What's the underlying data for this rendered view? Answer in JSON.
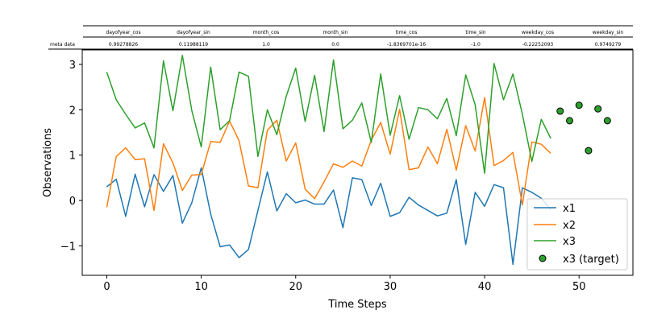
{
  "meta_table": {
    "columns": [
      "dayofyear_cos",
      "dayofyear_sin",
      "month_cos",
      "month_sin",
      "time_cos",
      "time_sin",
      "weekday_cos",
      "weekday_sin"
    ],
    "row_label": "meta data",
    "values": [
      "0.99278826",
      "0.11988119",
      "1.0",
      "0.0",
      "-1.8369701e-16",
      "-1.0",
      "-0.22252093",
      "0.9749279"
    ]
  },
  "chart_data": {
    "type": "line",
    "xlabel": "Time Steps",
    "ylabel": "Observations",
    "xlim": [
      -2.6,
      55.7
    ],
    "ylim": [
      -1.65,
      3.32
    ],
    "xticks": [
      0,
      10,
      20,
      30,
      40,
      50
    ],
    "yticks": [
      -1,
      0,
      1,
      2,
      3
    ],
    "grid": false,
    "legend_position": "lower-right",
    "series": [
      {
        "name": "x1",
        "color": "#1f77b4",
        "x": [
          0,
          1,
          2,
          3,
          4,
          5,
          6,
          7,
          8,
          9,
          10,
          11,
          12,
          13,
          14,
          15,
          16,
          17,
          18,
          19,
          20,
          21,
          22,
          23,
          24,
          25,
          26,
          27,
          28,
          29,
          30,
          31,
          32,
          33,
          34,
          35,
          36,
          37,
          38,
          39,
          40,
          41,
          42,
          43,
          44,
          45,
          46,
          47
        ],
        "values": [
          0.3,
          0.47,
          -0.35,
          0.58,
          -0.14,
          0.57,
          0.2,
          0.55,
          -0.5,
          -0.05,
          0.72,
          -0.3,
          -1.02,
          -0.98,
          -1.26,
          -1.08,
          -0.22,
          0.63,
          -0.23,
          0.15,
          -0.05,
          0.01,
          -0.08,
          -0.08,
          0.23,
          -0.6,
          0.5,
          0.46,
          -0.11,
          0.38,
          -0.35,
          -0.27,
          0.07,
          -0.1,
          -0.22,
          -0.34,
          -0.28,
          0.46,
          -0.97,
          0.18,
          -0.13,
          0.35,
          0.28,
          -1.41,
          0.28,
          0.18,
          0.05,
          -0.2
        ]
      },
      {
        "name": "x2",
        "color": "#ff7f0e",
        "x": [
          0,
          1,
          2,
          3,
          4,
          5,
          6,
          7,
          8,
          9,
          10,
          11,
          12,
          13,
          14,
          15,
          16,
          17,
          18,
          19,
          20,
          21,
          22,
          23,
          24,
          25,
          26,
          27,
          28,
          29,
          30,
          31,
          32,
          33,
          34,
          35,
          36,
          37,
          38,
          39,
          40,
          41,
          42,
          43,
          44,
          45,
          46,
          47
        ],
        "values": [
          -0.15,
          0.97,
          1.16,
          0.9,
          0.92,
          -0.22,
          1.25,
          0.83,
          0.22,
          0.56,
          0.57,
          1.3,
          1.28,
          1.75,
          1.32,
          0.32,
          0.28,
          1.55,
          1.77,
          0.87,
          1.27,
          0.25,
          0.04,
          0.41,
          0.81,
          0.73,
          0.87,
          0.76,
          1.33,
          1.72,
          1.02,
          2.01,
          0.68,
          0.72,
          1.18,
          0.81,
          1.57,
          0.67,
          1.65,
          1.09,
          2.27,
          0.77,
          0.88,
          1.06,
          -0.1,
          1.29,
          1.24,
          1.04
        ]
      },
      {
        "name": "x3",
        "color": "#2ca02c",
        "x": [
          0,
          1,
          2,
          3,
          4,
          5,
          6,
          7,
          8,
          9,
          10,
          11,
          12,
          13,
          14,
          15,
          16,
          17,
          18,
          19,
          20,
          21,
          22,
          23,
          24,
          25,
          26,
          27,
          28,
          29,
          30,
          31,
          32,
          33,
          34,
          35,
          36,
          37,
          38,
          39,
          40,
          41,
          42,
          43,
          44,
          45,
          46,
          47
        ],
        "values": [
          2.83,
          2.22,
          1.9,
          1.6,
          1.71,
          1.16,
          3.08,
          1.98,
          3.2,
          1.98,
          1.18,
          2.94,
          1.56,
          1.76,
          2.83,
          2.74,
          0.97,
          2.0,
          1.45,
          2.3,
          2.92,
          1.74,
          2.76,
          1.52,
          3.1,
          1.58,
          1.77,
          2.15,
          1.28,
          2.79,
          1.44,
          2.31,
          1.35,
          2.05,
          2.0,
          1.8,
          2.25,
          1.43,
          2.77,
          2.11,
          0.6,
          3.02,
          2.22,
          2.79,
          1.9,
          0.86,
          1.79,
          1.37
        ]
      }
    ],
    "target": {
      "name": "x3 (target)",
      "color": "#2ca02c",
      "edgecolor": "#000000",
      "x": [
        48,
        49,
        50,
        51,
        52,
        53
      ],
      "values": [
        1.97,
        1.76,
        2.1,
        1.1,
        2.02,
        1.76
      ]
    }
  }
}
